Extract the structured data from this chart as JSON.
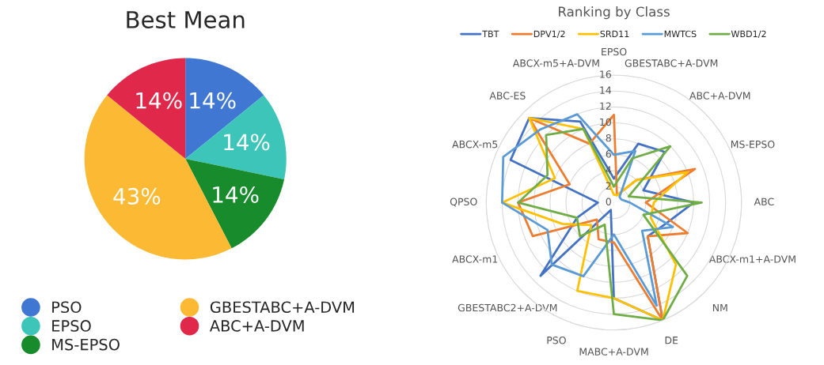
{
  "chart_data": [
    {
      "type": "pie",
      "title": "Best Mean",
      "categories": [
        "PSO",
        "EPSO",
        "MS-EPSO",
        "GBESTABC+A-DVM",
        "ABC+A-DVM"
      ],
      "values": [
        14,
        14,
        14,
        43,
        14
      ],
      "colors": [
        "#3f77d3",
        "#3dc5b9",
        "#188c2c",
        "#fcb933",
        "#e0284a"
      ],
      "value_labels": [
        "14%",
        "14%",
        "14%",
        "43%",
        "14%"
      ],
      "legend": "bottom"
    },
    {
      "type": "radar",
      "title": "Ranking by Class",
      "categories": [
        "EPSO",
        "GBESTABC+A-DVM",
        "ABC+A-DVM",
        "MS-EPSO",
        "ABC",
        "ABCX-m1+A-DVM",
        "NM",
        "DE",
        "MABC+A-DVM",
        "PSO",
        "GBESTABC2+A-DVM",
        "ABCX-m1",
        "QPSO",
        "ABCX-m5",
        "ABC-ES",
        "ABCX-m5+A-DVM"
      ],
      "series": [
        {
          "name": "TBT",
          "color": "#4472c4",
          "values": [
            3,
            8,
            9,
            4,
            10,
            7,
            6,
            16,
            12,
            1,
            13,
            5,
            2,
            14,
            15,
            11
          ]
        },
        {
          "name": "DPV1/2",
          "color": "#ed7d31",
          "values": [
            11,
            1,
            4,
            11,
            4,
            10,
            6,
            16,
            5,
            5,
            3,
            11,
            12,
            6,
            15,
            8
          ]
        },
        {
          "name": "SRD11",
          "color": "#ffc000",
          "values": [
            1,
            1,
            4,
            10,
            5,
            5,
            11,
            16,
            12,
            12,
            4,
            7,
            14,
            8,
            15,
            10
          ]
        },
        {
          "name": "MWTCS",
          "color": "#5b9bd5",
          "values": [
            6,
            7,
            1,
            1,
            2,
            8,
            5,
            14,
            4,
            10,
            11,
            9,
            14,
            15,
            13,
            12
          ]
        },
        {
          "name": "WBD1/2",
          "color": "#70ad47",
          "values": [
            2,
            6,
            10,
            2,
            11,
            4,
            13,
            16,
            14,
            3,
            6,
            5,
            12,
            9,
            12,
            10
          ]
        }
      ],
      "ylim": [
        0,
        16
      ],
      "yticks": [
        0,
        2,
        4,
        6,
        8,
        10,
        12,
        14,
        16
      ],
      "grid": "y",
      "legend": "top",
      "marker": "none",
      "line_style": "solid"
    }
  ]
}
